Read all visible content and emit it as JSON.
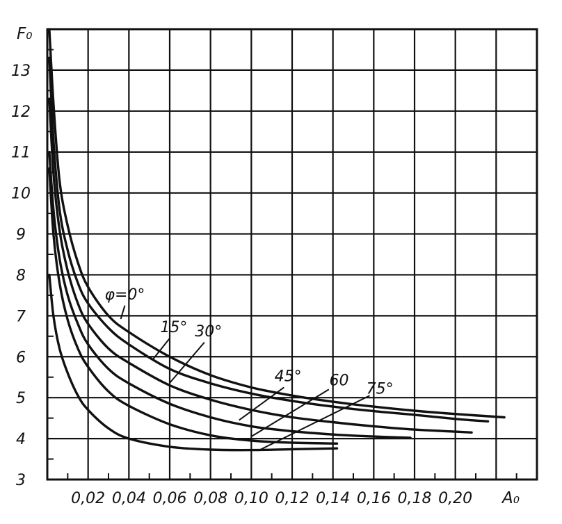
{
  "chart_data": {
    "type": "line",
    "title": "",
    "ylabel": "F₀",
    "xlabel": "A₀",
    "xlim": [
      0,
      0.24
    ],
    "ylim": [
      3,
      14
    ],
    "grid": true,
    "x_ticks": [
      "0,02",
      "0,04",
      "0,06",
      "0,08",
      "0,10",
      "0,12",
      "0,14",
      "0,16",
      "0,18",
      "0,20"
    ],
    "y_ticks": [
      "3",
      "4",
      "5",
      "6",
      "7",
      "8",
      "9",
      "10",
      "11",
      "12",
      "13"
    ],
    "series": [
      {
        "name": "φ=0°",
        "x": [
          0.001,
          0.003,
          0.006,
          0.01,
          0.015,
          0.02,
          0.03,
          0.04,
          0.06,
          0.08,
          0.1,
          0.12,
          0.14,
          0.16,
          0.18,
          0.2,
          0.224
        ],
        "y": [
          14.0,
          12.2,
          10.3,
          9.2,
          8.3,
          7.7,
          7.0,
          6.6,
          6.0,
          5.55,
          5.25,
          5.05,
          4.9,
          4.78,
          4.68,
          4.6,
          4.52
        ]
      },
      {
        "name": "15°",
        "x": [
          0.001,
          0.003,
          0.006,
          0.01,
          0.015,
          0.02,
          0.03,
          0.04,
          0.06,
          0.08,
          0.1,
          0.12,
          0.14,
          0.16,
          0.18,
          0.2,
          0.216
        ],
        "y": [
          13.3,
          11.3,
          9.6,
          8.6,
          7.8,
          7.3,
          6.7,
          6.3,
          5.7,
          5.35,
          5.1,
          4.92,
          4.78,
          4.67,
          4.58,
          4.48,
          4.42
        ]
      },
      {
        "name": "30°",
        "x": [
          0.001,
          0.003,
          0.006,
          0.01,
          0.015,
          0.02,
          0.03,
          0.04,
          0.06,
          0.08,
          0.1,
          0.12,
          0.14,
          0.16,
          0.18,
          0.2,
          0.208
        ],
        "y": [
          12.3,
          10.5,
          9.1,
          8.1,
          7.3,
          6.8,
          6.2,
          5.85,
          5.3,
          4.95,
          4.7,
          4.52,
          4.4,
          4.3,
          4.22,
          4.17,
          4.15
        ]
      },
      {
        "name": "45°",
        "x": [
          0.001,
          0.003,
          0.006,
          0.01,
          0.015,
          0.02,
          0.03,
          0.04,
          0.06,
          0.08,
          0.1,
          0.12,
          0.14,
          0.16,
          0.178
        ],
        "y": [
          11.0,
          9.6,
          8.4,
          7.5,
          6.8,
          6.3,
          5.7,
          5.35,
          4.85,
          4.52,
          4.3,
          4.18,
          4.1,
          4.05,
          4.02
        ]
      },
      {
        "name": "60",
        "x": [
          0.001,
          0.003,
          0.006,
          0.01,
          0.015,
          0.02,
          0.03,
          0.04,
          0.06,
          0.08,
          0.1,
          0.12,
          0.142
        ],
        "y": [
          10.6,
          9.0,
          7.8,
          6.9,
          6.2,
          5.75,
          5.15,
          4.8,
          4.35,
          4.08,
          3.95,
          3.9,
          3.88
        ]
      },
      {
        "name": "75°",
        "x": [
          0.001,
          0.003,
          0.006,
          0.01,
          0.015,
          0.02,
          0.03,
          0.04,
          0.06,
          0.08,
          0.1,
          0.12,
          0.142
        ],
        "y": [
          8.0,
          7.0,
          6.2,
          5.6,
          5.05,
          4.7,
          4.25,
          4.0,
          3.8,
          3.73,
          3.72,
          3.74,
          3.76
        ]
      }
    ],
    "labels": [
      {
        "text": "φ=0°",
        "at": [
          0.038,
          7.4
        ]
      },
      {
        "text": "15°",
        "at": [
          0.062,
          6.6
        ]
      },
      {
        "text": "30°",
        "at": [
          0.079,
          6.5
        ]
      },
      {
        "text": "45°",
        "at": [
          0.118,
          5.4
        ]
      },
      {
        "text": "60",
        "at": [
          0.143,
          5.3
        ]
      },
      {
        "text": "75°",
        "at": [
          0.163,
          5.1
        ]
      }
    ],
    "leaders": [
      {
        "from": [
          0.038,
          7.25
        ],
        "to": [
          0.036,
          6.92
        ]
      },
      {
        "from": [
          0.06,
          6.45
        ],
        "to": [
          0.052,
          5.95
        ]
      },
      {
        "from": [
          0.077,
          6.35
        ],
        "to": [
          0.06,
          5.36
        ]
      },
      {
        "from": [
          0.116,
          5.25
        ],
        "to": [
          0.094,
          4.45
        ]
      },
      {
        "from": [
          0.138,
          5.2
        ],
        "to": [
          0.1,
          4.05
        ]
      },
      {
        "from": [
          0.158,
          5.05
        ],
        "to": [
          0.104,
          3.72
        ],
        "tail": [
          0.1,
          3.72
        ]
      }
    ]
  }
}
